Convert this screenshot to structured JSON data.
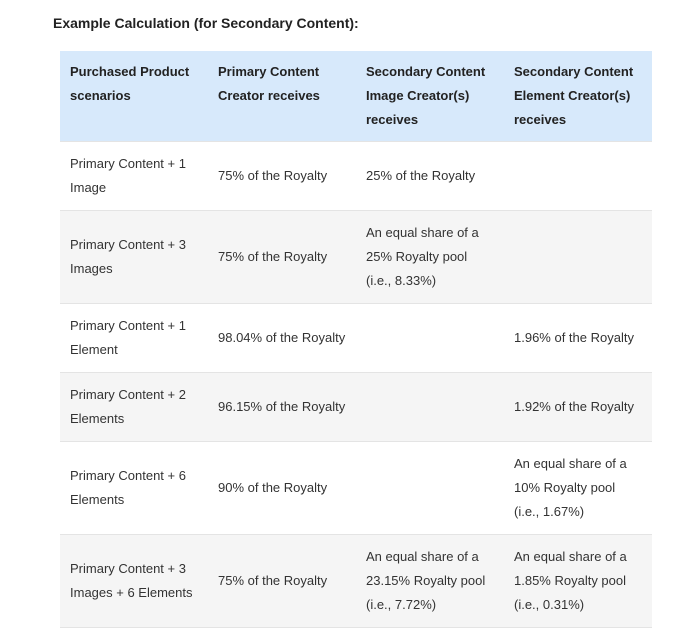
{
  "heading": "Example Calculation (for Secondary Content):",
  "table": {
    "header": [
      "Purchased Product scenarios",
      "Primary Content Creator receives",
      "Secondary Content Image Creator(s) receives",
      "Secondary Content Element Creator(s) receives"
    ],
    "rows": [
      [
        "Primary Content + 1 Image",
        "75% of the Royalty",
        "25% of the Royalty",
        null
      ],
      [
        "Primary Content + 3 Images",
        "75% of the Royalty",
        "An equal share of a 25% Royalty pool (i.e., 8.33%)",
        null
      ],
      [
        "Primary Content + 1 Element",
        "98.04% of the Royalty",
        null,
        "1.96% of the Royalty"
      ],
      [
        "Primary Content + 2 Elements",
        "96.15% of the Royalty",
        null,
        "1.92% of the Royalty"
      ],
      [
        "Primary Content + 6 Elements",
        "90% of the Royalty",
        null,
        "An equal share of a 10% Royalty pool (i.e., 1.67%)"
      ],
      [
        "Primary Content + 3 Images + 6 Elements",
        "75% of the Royalty",
        "An equal share of a 23.15% Royalty pool (i.e., 7.72%)",
        "An equal share of a 1.85% Royalty pool (i.e., 0.31%)"
      ]
    ]
  }
}
